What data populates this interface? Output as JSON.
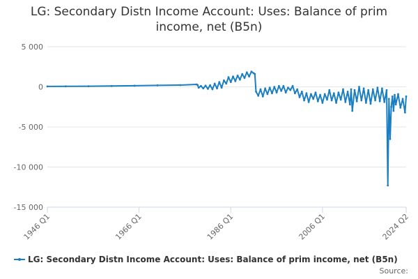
{
  "chart_data": {
    "type": "line",
    "title_line1": "LG: Secondary Distn Income Account: Uses: Balance of prim",
    "title_line2": "income, net (B5n)",
    "xlabel": "",
    "ylabel": "",
    "ylim": [
      -15000,
      5000
    ],
    "yticks": [
      5000,
      0,
      -5000,
      -10000,
      -15000
    ],
    "ytick_labels": [
      "5 000",
      "0",
      "-5 000",
      "-10 000",
      "-15 000"
    ],
    "xlim": [
      1946.0,
      2024.25
    ],
    "xticks": [
      1946.0,
      1966.0,
      1986.0,
      2006.0,
      2024.25
    ],
    "xtick_labels": [
      "1946 Q1",
      "1966 Q1",
      "1986 Q1",
      "2006 Q1",
      "2024 Q2"
    ],
    "grid": true,
    "legend": "bottom",
    "color": "#1a7ec2",
    "series": [
      {
        "name": "LG: Secondary Distn Income Account: Uses: Balance of prim income, net (B5n)",
        "x": [
          1946.0,
          1950.0,
          1955.0,
          1960.0,
          1965.0,
          1970.0,
          1975.0,
          1978.5,
          1978.75,
          1979.0,
          1979.5,
          1980.0,
          1980.5,
          1981.0,
          1981.5,
          1982.0,
          1982.5,
          1983.0,
          1983.5,
          1984.0,
          1984.5,
          1985.0,
          1985.5,
          1986.0,
          1986.5,
          1987.0,
          1987.5,
          1988.0,
          1988.5,
          1989.0,
          1989.5,
          1990.0,
          1990.5,
          1991.0,
          1991.25,
          1991.5,
          1992.0,
          1992.5,
          1993.0,
          1993.5,
          1994.0,
          1994.5,
          1995.0,
          1995.5,
          1996.0,
          1996.5,
          1997.0,
          1997.5,
          1998.0,
          1998.5,
          1999.0,
          1999.5,
          2000.0,
          2000.5,
          2001.0,
          2001.5,
          2002.0,
          2002.5,
          2003.0,
          2003.5,
          2004.0,
          2004.5,
          2005.0,
          2005.5,
          2006.0,
          2006.5,
          2007.0,
          2007.5,
          2008.0,
          2008.5,
          2009.0,
          2009.5,
          2010.0,
          2010.5,
          2011.0,
          2011.5,
          2012.0,
          2012.25,
          2012.5,
          2013.0,
          2013.5,
          2014.0,
          2014.5,
          2015.0,
          2015.5,
          2016.0,
          2016.5,
          2017.0,
          2017.5,
          2018.0,
          2018.5,
          2019.0,
          2019.5,
          2020.0,
          2020.25,
          2020.5,
          2020.75,
          2021.0,
          2021.25,
          2021.5,
          2021.75,
          2022.0,
          2022.5,
          2023.0,
          2023.5,
          2024.0,
          2024.25
        ],
        "values": [
          50,
          60,
          80,
          100,
          140,
          180,
          220,
          300,
          250,
          -100,
          100,
          -200,
          150,
          -250,
          200,
          -300,
          400,
          -200,
          600,
          -100,
          800,
          400,
          1200,
          600,
          1300,
          700,
          1400,
          900,
          1600,
          1100,
          1800,
          1300,
          1900,
          1700,
          1600,
          -600,
          -1100,
          -300,
          -1200,
          -200,
          -900,
          -100,
          -800,
          0,
          -700,
          100,
          -500,
          100,
          -700,
          -100,
          -400,
          100,
          -800,
          -300,
          -1300,
          -600,
          -1700,
          -800,
          -1900,
          -900,
          -1500,
          -700,
          -1800,
          -1000,
          -2000,
          -900,
          -1600,
          -400,
          -1700,
          -800,
          -2000,
          -700,
          -1600,
          -300,
          -1900,
          -600,
          -2200,
          -300,
          -3000,
          -400,
          -1800,
          0,
          -1700,
          -200,
          -2000,
          -400,
          -2100,
          -300,
          -1700,
          -100,
          -1800,
          -200,
          -1900,
          -400,
          -12300,
          -1500,
          -6500,
          -2500,
          -1200,
          -3000,
          -1000,
          -2200,
          -900,
          -2600,
          -1500,
          -3200,
          -1200
        ]
      }
    ],
    "source_label": "Source:"
  }
}
